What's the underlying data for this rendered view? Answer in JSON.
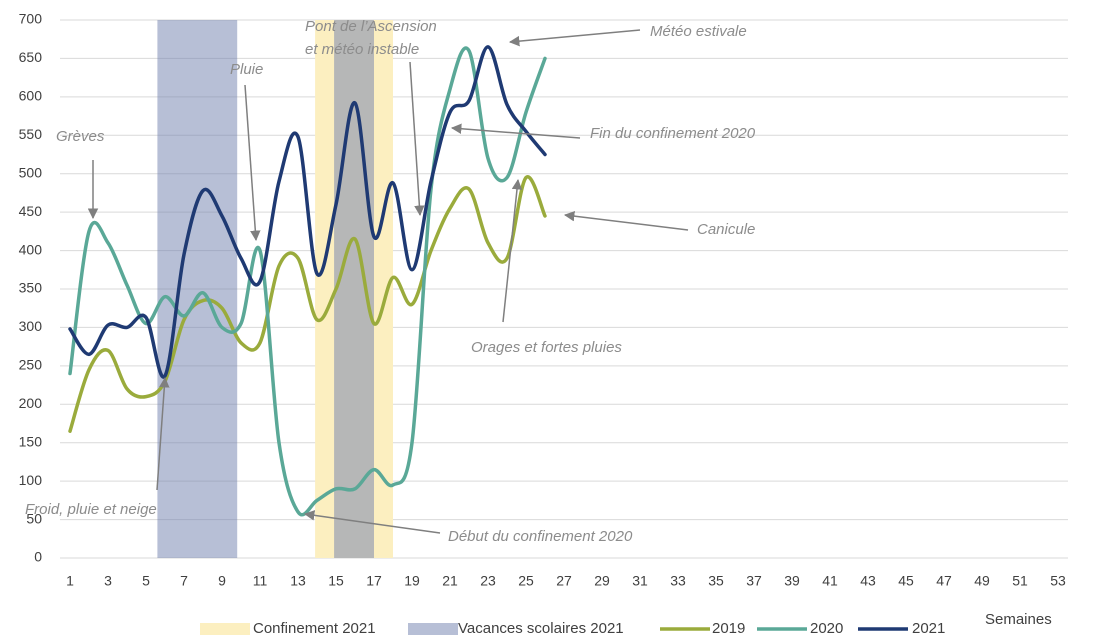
{
  "chart_data": {
    "type": "line",
    "x_label": "Semaines",
    "x": [
      1,
      2,
      3,
      4,
      5,
      6,
      7,
      8,
      9,
      10,
      11,
      12,
      13,
      14,
      15,
      16,
      17,
      18,
      19,
      20,
      21,
      22,
      23,
      24,
      25,
      26
    ],
    "xlim": [
      1,
      53
    ],
    "xticks": [
      1,
      3,
      5,
      7,
      9,
      11,
      13,
      15,
      17,
      19,
      21,
      23,
      25,
      27,
      29,
      31,
      33,
      35,
      37,
      39,
      41,
      43,
      45,
      47,
      49,
      51,
      53
    ],
    "ylim": [
      0,
      700
    ],
    "yticks": [
      0,
      50,
      100,
      150,
      200,
      250,
      300,
      350,
      400,
      450,
      500,
      550,
      600,
      650,
      700
    ],
    "grid": true,
    "legend": "bottom",
    "bands": [
      {
        "name": "Confinement 2021",
        "color": "#fcefc0",
        "ranges": [
          [
            13.9,
            18
          ]
        ]
      },
      {
        "name": "Vacances scolaires 2021",
        "color": "#6f7fae",
        "ranges": [
          [
            5.6,
            9.8
          ],
          [
            14.9,
            17
          ]
        ]
      }
    ],
    "series": [
      {
        "name": "2019",
        "color": "#9aab3c",
        "values": [
          165,
          245,
          270,
          220,
          210,
          230,
          310,
          335,
          325,
          280,
          280,
          380,
          390,
          310,
          350,
          415,
          305,
          365,
          330,
          400,
          455,
          480,
          410,
          390,
          495,
          445
        ]
      },
      {
        "name": "2020",
        "color": "#5aa897",
        "values": [
          240,
          425,
          410,
          355,
          305,
          340,
          315,
          345,
          300,
          305,
          400,
          150,
          60,
          75,
          90,
          90,
          115,
          95,
          150,
          480,
          610,
          660,
          520,
          495,
          580,
          650
        ]
      },
      {
        "name": "2021",
        "color": "#1f3a73",
        "values": [
          298,
          265,
          303,
          300,
          313,
          237,
          395,
          478,
          445,
          390,
          360,
          490,
          548,
          370,
          460,
          592,
          418,
          488,
          375,
          490,
          580,
          595,
          665,
          590,
          555,
          525
        ]
      }
    ],
    "annotations": [
      {
        "text": "Grèves"
      },
      {
        "text": "Pluie"
      },
      {
        "text": "Pont de l’Ascension"
      },
      {
        "text": "et météo instable"
      },
      {
        "text": "Météo estivale"
      },
      {
        "text": "Fin du confinement 2020"
      },
      {
        "text": "Canicule"
      },
      {
        "text": "Orages et fortes pluies"
      },
      {
        "text": "Froid, pluie et neige"
      },
      {
        "text": "Début du confinement 2020"
      }
    ]
  }
}
